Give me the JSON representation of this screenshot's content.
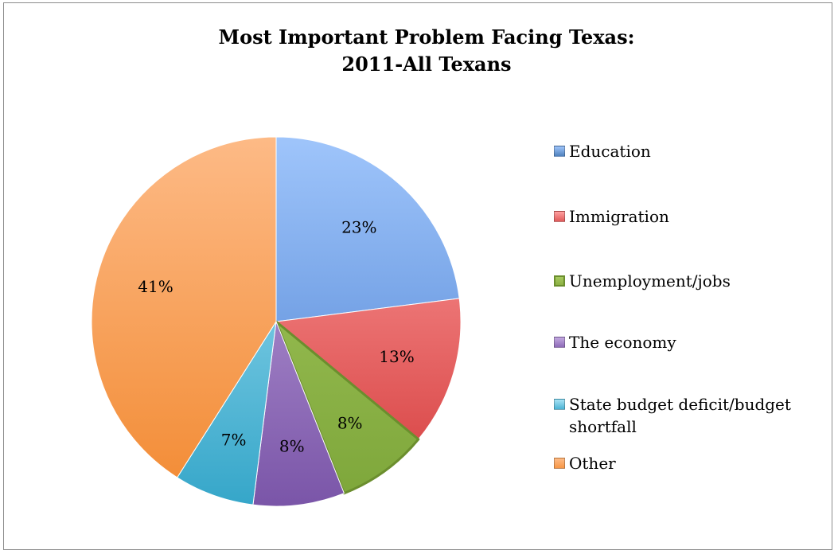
{
  "chart_data": {
    "type": "pie",
    "title": [
      "Most Important Problem Facing Texas:",
      "2011-All Texans"
    ],
    "start_angle_deg": 0,
    "direction": "clockwise",
    "legend_position": "right",
    "slices": [
      {
        "label": "Education",
        "value": 23,
        "data_label": "23%",
        "color_light": "#9fc5fb",
        "color_dark": "#4a7fd0",
        "swatch": "#4f81bd"
      },
      {
        "label": "Immigration",
        "value": 13,
        "data_label": "13%",
        "color_light": "#ffa1a1",
        "color_dark": "#d43b3b",
        "swatch": "#e05a5a"
      },
      {
        "label": "Unemployment/jobs",
        "value": 8,
        "data_label": "8%",
        "color_light": "#a6c95f",
        "color_dark": "#7da63a",
        "swatch": "#8cb043",
        "outline": "#6b8e2e"
      },
      {
        "label": "The economy",
        "value": 8,
        "data_label": "8%",
        "color_light": "#c3a9e0",
        "color_dark": "#7a55a8",
        "swatch": "#8e6bb8"
      },
      {
        "label": "State budget deficit/budget shortfall",
        "value": 7,
        "data_label": "7%",
        "color_light": "#a8e3f5",
        "color_dark": "#35a6c9",
        "swatch": "#4bb3d4"
      },
      {
        "label": "Other",
        "value": 41,
        "data_label": "41%",
        "color_light": "#fdba86",
        "color_dark": "#f28a32",
        "swatch": "#f79646"
      }
    ]
  }
}
